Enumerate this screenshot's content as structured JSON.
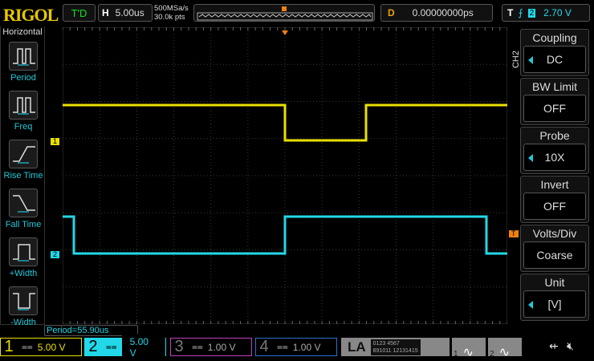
{
  "brand": "RIGOL",
  "top": {
    "run_state": "T'D",
    "h_label": "H",
    "timebase": "5.00us",
    "sample_rate": "500MSa/s",
    "memory_depth": "30.0k pts",
    "delay_label": "D",
    "delay": "0.00000000ps",
    "trigger_label": "T",
    "trigger_source": "2",
    "trigger_level": "2.70 V"
  },
  "left_menu": {
    "title": "Horizontal",
    "items": [
      {
        "label": "Period"
      },
      {
        "label": "Freq"
      },
      {
        "label": "Rise Time"
      },
      {
        "label": "Fall Time"
      },
      {
        "label": "+Width"
      },
      {
        "label": "-Width"
      }
    ]
  },
  "right_menu": {
    "channel": "CH2",
    "items": [
      {
        "label": "Coupling",
        "value": "DC",
        "arrow": true
      },
      {
        "label": "BW Limit",
        "value": "OFF",
        "arrow": false
      },
      {
        "label": "Probe",
        "value": "10X",
        "arrow": true
      },
      {
        "label": "Invert",
        "value": "OFF",
        "arrow": false
      },
      {
        "label": "Volts/Div",
        "value": "Coarse",
        "arrow": false
      },
      {
        "label": "Unit",
        "value": "[V]",
        "arrow": true
      }
    ]
  },
  "measurement": "Period=55.90us",
  "markers": {
    "ch1": "1",
    "ch2": "2",
    "trigger": "T"
  },
  "channels": [
    {
      "num": "1",
      "scale": "5.00 V",
      "color": "#e8e000",
      "active": true
    },
    {
      "num": "2",
      "scale": "5.00 V",
      "color": "#22d8e8",
      "active": true
    },
    {
      "num": "3",
      "scale": "1.00 V",
      "color": "#c040c0",
      "active": false
    },
    {
      "num": "4",
      "scale": "1.00 V",
      "color": "#3070d0",
      "active": false
    }
  ],
  "la": {
    "label": "LA",
    "row1": "0123 4567",
    "row2": "891011 12131415"
  },
  "gen": [
    "1",
    "2"
  ],
  "colors": {
    "ch1": "#e8e000",
    "ch2": "#22d8e8",
    "trigger": "#f08010",
    "grid": "#444"
  }
}
